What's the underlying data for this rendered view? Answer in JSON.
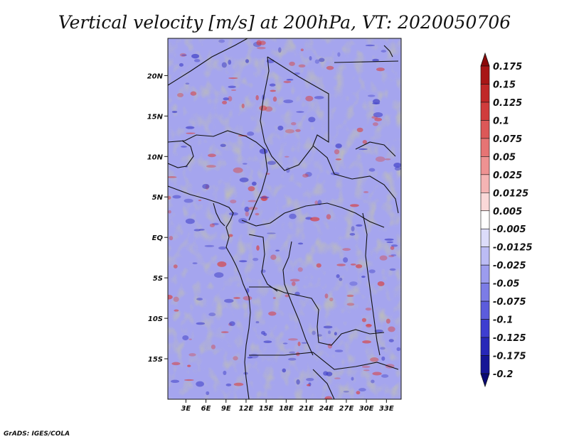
{
  "chart_data": {
    "type": "heatmap",
    "title": "Vertical velocity [m/s] at 200hPa, VT: 2020050706",
    "variable": "Vertical velocity",
    "units": "m/s",
    "level": "200hPa",
    "valid_time": "2020050706",
    "x_ticks": [
      "3E",
      "6E",
      "9E",
      "12E",
      "15E",
      "18E",
      "21E",
      "24E",
      "27E",
      "30E",
      "33E"
    ],
    "x_tick_values": [
      3,
      6,
      9,
      12,
      15,
      18,
      21,
      24,
      27,
      30,
      33
    ],
    "y_ticks": [
      "20N",
      "15N",
      "10N",
      "5N",
      "EQ",
      "5S",
      "10S",
      "15S"
    ],
    "y_tick_values": [
      20,
      15,
      10,
      5,
      0,
      -5,
      -10,
      -15
    ],
    "xlim": [
      0.3,
      35.2
    ],
    "ylim": [
      -20,
      24.6
    ],
    "colorbar": {
      "labels": [
        "0.175",
        "0.15",
        "0.125",
        "0.1",
        "0.075",
        "0.05",
        "0.025",
        "0.0125",
        "0.005",
        "-0.005",
        "-0.0125",
        "-0.025",
        "-0.05",
        "-0.075",
        "-0.1",
        "-0.125",
        "-0.175",
        "-0.2"
      ],
      "colors": [
        "#8b0a0a",
        "#a81616",
        "#c02828",
        "#d03c3c",
        "#dc5858",
        "#e67474",
        "#ee9292",
        "#f5b4b4",
        "#fad8d8",
        "#ffffff",
        "#dcdcfa",
        "#bcbcf5",
        "#9c9cee",
        "#7c7ce6",
        "#5c5cdc",
        "#3e3ed0",
        "#2828b8",
        "#161696",
        "#0a0a74"
      ]
    }
  },
  "footer": {
    "credit": "GrADS: IGES/COLA"
  }
}
